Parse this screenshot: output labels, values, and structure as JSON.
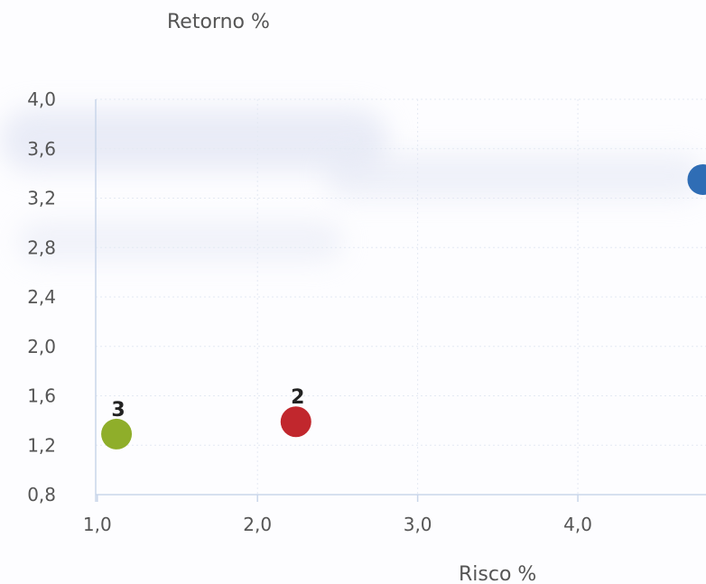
{
  "chart_data": {
    "type": "scatter",
    "title": "",
    "xlabel": "Risco %",
    "ylabel": "Retorno %",
    "xlim": [
      0.99,
      4.8
    ],
    "ylim": [
      0.8,
      4.0
    ],
    "xticks": [
      1.0,
      2.0,
      3.0,
      4.0
    ],
    "xtick_labels": [
      "1,0",
      "2,0",
      "3,0",
      "4,0"
    ],
    "yticks": [
      0.8,
      1.2,
      1.6,
      2.0,
      2.4,
      2.8,
      3.2,
      3.6,
      4.0
    ],
    "ytick_labels": [
      "0,8",
      "1,2",
      "1,6",
      "2,0",
      "2,4",
      "2,8",
      "3,2",
      "3,6",
      "4,0"
    ],
    "grid": true,
    "legend": "none",
    "points": [
      {
        "label": "3",
        "x": 1.12,
        "y": 1.29,
        "color": "#8fae2a"
      },
      {
        "label": "2",
        "x": 2.24,
        "y": 1.39,
        "color": "#c1272d"
      },
      {
        "label": "",
        "x": 4.78,
        "y": 3.35,
        "color": "#2f6db5"
      }
    ]
  },
  "colors": {
    "axis": "#c9d6ea",
    "grid": "#e4e9f3",
    "tick_text": "#555555",
    "axis_title": "#555555",
    "point_label": "#222222"
  }
}
